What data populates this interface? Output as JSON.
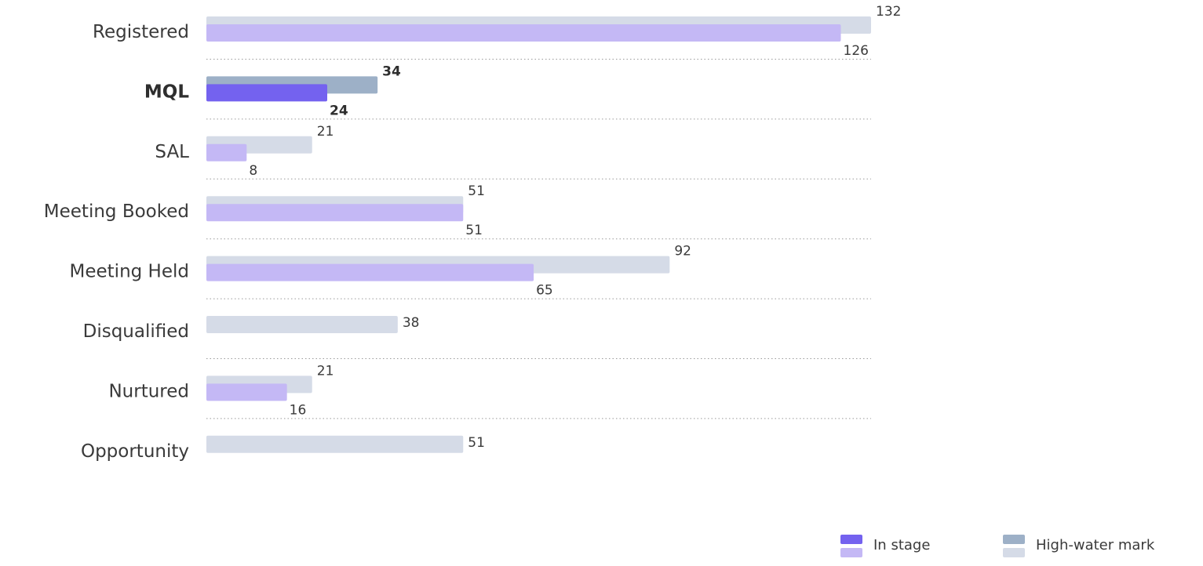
{
  "chart_data": {
    "type": "bar",
    "orientation": "horizontal",
    "categories": [
      "Registered",
      "MQL",
      "SAL",
      "Meeting Booked",
      "Meeting Held",
      "Disqualified",
      "Nurtured",
      "Opportunity"
    ],
    "highlighted_category": "MQL",
    "series": [
      {
        "name": "High-water mark",
        "values": [
          132,
          34,
          21,
          51,
          92,
          38,
          21,
          51
        ]
      },
      {
        "name": "In stage",
        "values": [
          126,
          24,
          8,
          51,
          65,
          null,
          16,
          null
        ]
      }
    ],
    "xlim": [
      0,
      132
    ],
    "grid": "dotted row separators",
    "legend_position": "bottom-right",
    "colors": {
      "in_stage": "#7462ef",
      "in_stage_light": "#c4b8f5",
      "high_water": "#9db0c7",
      "high_water_light": "#d5dbe7",
      "separator": "#9a9a9a"
    }
  }
}
